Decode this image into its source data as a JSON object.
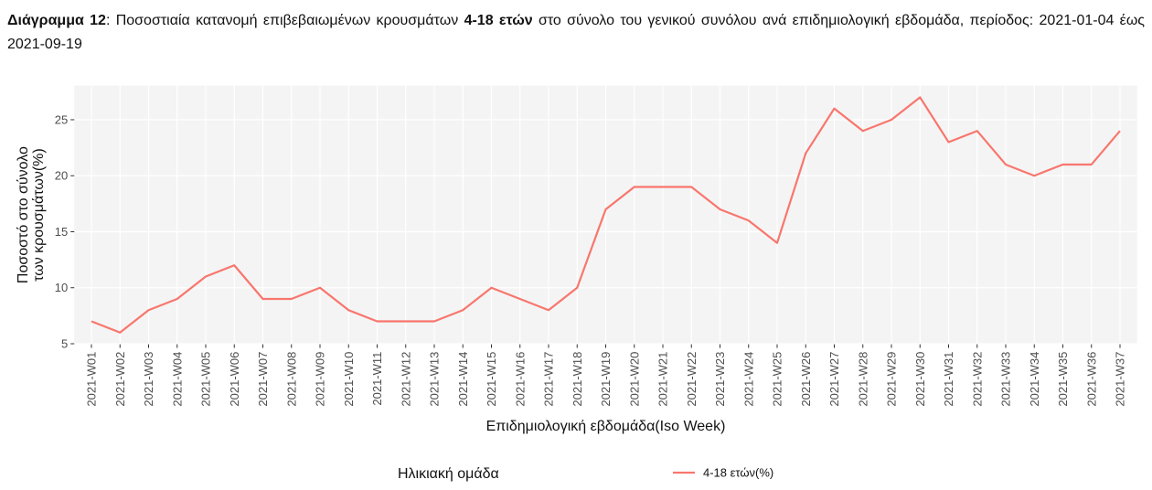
{
  "caption": {
    "label": "Διάγραμμα 12",
    "text_1": ":  Ποσοστιαία κατανομή επιβεβαιωμένων κρουσμάτων ",
    "bold": "4-18 ετών",
    "text_2": " στο σύνολο του γενικού συνόλου ανά επιδημιολογική εβδομάδα, περίοδος: 2021-01-04 έως 2021-09-19"
  },
  "chart_data": {
    "type": "line",
    "x_label": "Επιδημιολογική εβδομάδα(Iso Week)",
    "y_label": [
      "Ποσοστό στο σύνολο",
      "των κρουσμάτων(%)"
    ],
    "legend_title": "Ηλικιακή ομάδα",
    "categories": [
      "2021-W01",
      "2021-W02",
      "2021-W03",
      "2021-W04",
      "2021-W05",
      "2021-W06",
      "2021-W07",
      "2021-W08",
      "2021-W09",
      "2021-W10",
      "2021-W11",
      "2021-W12",
      "2021-W13",
      "2021-W14",
      "2021-W15",
      "2021-W16",
      "2021-W17",
      "2021-W18",
      "2021-W19",
      "2021-W20",
      "2021-W21",
      "2021-W22",
      "2021-W23",
      "2021-W24",
      "2021-W25",
      "2021-W26",
      "2021-W27",
      "2021-W28",
      "2021-W29",
      "2021-W30",
      "2021-W31",
      "2021-W32",
      "2021-W33",
      "2021-W34",
      "2021-W35",
      "2021-W36",
      "2021-W37"
    ],
    "series": [
      {
        "name": "4-18 ετών(%)",
        "color": "#F8766D",
        "values": [
          7,
          6,
          8,
          9,
          11,
          12,
          9,
          9,
          10,
          8,
          7,
          7,
          7,
          8,
          10,
          9,
          8,
          10,
          17,
          19,
          19,
          19,
          17,
          16,
          14,
          22,
          26,
          24,
          25,
          27,
          23,
          24,
          21,
          20,
          21,
          21,
          24
        ]
      }
    ],
    "ylim": [
      4.95,
      28.05
    ],
    "yticks": [
      5,
      10,
      15,
      20,
      25
    ],
    "grid": true
  }
}
